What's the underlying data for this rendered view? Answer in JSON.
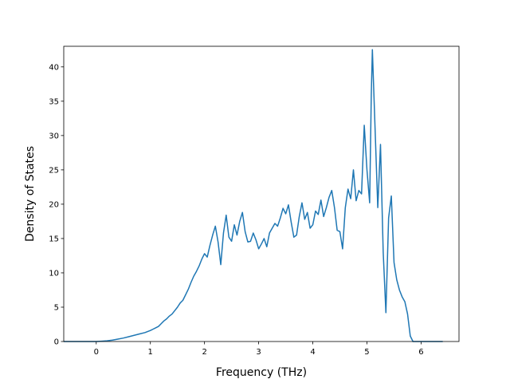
{
  "chart_data": {
    "type": "line",
    "title": "",
    "xlabel": "Frequency (THz)",
    "ylabel": "Density of States",
    "xlim": [
      -0.6,
      6.7
    ],
    "ylim": [
      0,
      43
    ],
    "xticks": [
      0,
      1,
      2,
      3,
      4,
      5,
      6
    ],
    "yticks": [
      0,
      5,
      10,
      15,
      20,
      25,
      30,
      35,
      40
    ],
    "grid": false,
    "legend": "none",
    "line_color": "#1f77b4",
    "series": [
      {
        "x": [
          -0.6,
          -0.3,
          0.0,
          0.1,
          0.2,
          0.3,
          0.4,
          0.5,
          0.6,
          0.7,
          0.8,
          0.9,
          1.0,
          1.05,
          1.1,
          1.15,
          1.2,
          1.25,
          1.3,
          1.35,
          1.4,
          1.45,
          1.5,
          1.55,
          1.6,
          1.65,
          1.7,
          1.75,
          1.8,
          1.85,
          1.9,
          1.95,
          2.0,
          2.05,
          2.1,
          2.15,
          2.2,
          2.25,
          2.3,
          2.35,
          2.4,
          2.45,
          2.5,
          2.55,
          2.6,
          2.65,
          2.7,
          2.75,
          2.8,
          2.85,
          2.9,
          2.95,
          3.0,
          3.05,
          3.1,
          3.15,
          3.2,
          3.25,
          3.3,
          3.35,
          3.4,
          3.45,
          3.5,
          3.55,
          3.6,
          3.65,
          3.7,
          3.75,
          3.8,
          3.85,
          3.9,
          3.95,
          4.0,
          4.05,
          4.1,
          4.15,
          4.2,
          4.25,
          4.3,
          4.35,
          4.4,
          4.45,
          4.5,
          4.55,
          4.6,
          4.65,
          4.7,
          4.75,
          4.8,
          4.85,
          4.9,
          4.95,
          5.0,
          5.05,
          5.08,
          5.1,
          5.15,
          5.2,
          5.25,
          5.3,
          5.35,
          5.4,
          5.45,
          5.5,
          5.55,
          5.6,
          5.65,
          5.7,
          5.75,
          5.8,
          5.85,
          5.9,
          6.0,
          6.4
        ],
        "y": [
          0,
          0,
          0,
          0.05,
          0.1,
          0.2,
          0.35,
          0.5,
          0.7,
          0.9,
          1.1,
          1.3,
          1.6,
          1.8,
          2.0,
          2.2,
          2.6,
          3.0,
          3.3,
          3.7,
          4.0,
          4.5,
          5.0,
          5.6,
          6.0,
          6.8,
          7.6,
          8.6,
          9.5,
          10.2,
          11.0,
          12.0,
          12.8,
          12.3,
          14.0,
          15.5,
          16.8,
          14.5,
          11.2,
          15.8,
          18.4,
          15.2,
          14.6,
          17.0,
          15.5,
          17.5,
          18.8,
          16.0,
          14.5,
          14.6,
          15.8,
          14.8,
          13.5,
          14.2,
          15.0,
          13.8,
          15.8,
          16.5,
          17.2,
          16.8,
          18.0,
          19.4,
          18.6,
          19.9,
          17.4,
          15.2,
          15.5,
          18.2,
          20.2,
          17.8,
          18.8,
          16.5,
          17.0,
          19.0,
          18.5,
          20.6,
          18.2,
          19.5,
          21.0,
          22.0,
          19.5,
          16.2,
          16.0,
          13.5,
          19.5,
          22.2,
          20.8,
          25.0,
          20.5,
          22.0,
          21.5,
          31.5,
          25.0,
          20.2,
          36.0,
          42.5,
          31.0,
          19.5,
          28.7,
          13.0,
          4.2,
          18.0,
          21.2,
          11.5,
          9.0,
          7.5,
          6.5,
          5.8,
          4.0,
          0.8,
          0,
          0,
          0,
          0
        ]
      }
    ]
  }
}
